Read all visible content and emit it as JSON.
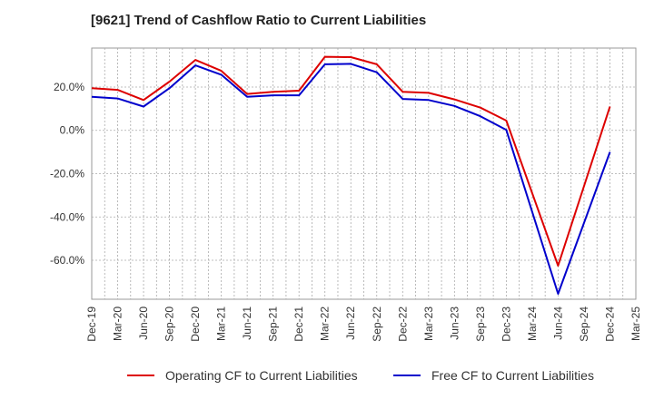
{
  "chart_data": {
    "type": "line",
    "title": "[9621]  Trend of Cashflow Ratio to Current Liabilities",
    "xlabel": "",
    "ylabel": "",
    "x_tick_labels": [
      "Dec-19",
      "Mar-20",
      "Jun-20",
      "Sep-20",
      "Dec-20",
      "Mar-21",
      "Jun-21",
      "Sep-21",
      "Dec-21",
      "Mar-22",
      "Jun-22",
      "Sep-22",
      "Dec-22",
      "Mar-23",
      "Jun-23",
      "Sep-23",
      "Dec-23",
      "Mar-24",
      "Jun-24",
      "Sep-24",
      "Dec-24",
      "Mar-25"
    ],
    "y_tick_values": [
      20,
      0,
      -20,
      -40,
      -60
    ],
    "y_tick_labels": [
      "20.0%",
      "0.0%",
      "-20.0%",
      "-40.0%",
      "-60.0%"
    ],
    "ylim": [
      -78,
      38
    ],
    "grid": true,
    "legend_position": "bottom",
    "series": [
      {
        "name": "Operating CF to Current Liabilities",
        "color": "#dd0000",
        "x": [
          "Dec-19",
          "Mar-20",
          "Jun-20",
          "Sep-20",
          "Dec-20",
          "Mar-21",
          "Jun-21",
          "Sep-21",
          "Dec-21",
          "Mar-22",
          "Jun-22",
          "Sep-22",
          "Dec-22",
          "Mar-23",
          "Jun-23",
          "Sep-23",
          "Dec-23",
          "Jun-24",
          "Dec-24"
        ],
        "values": [
          19.5,
          18.7,
          14,
          22.5,
          32.5,
          27.5,
          16.8,
          17.8,
          18.3,
          34,
          33.8,
          30.5,
          17.8,
          17.3,
          14.3,
          10.5,
          4.5,
          -62.5,
          11
        ]
      },
      {
        "name": "Free CF to Current Liabilities",
        "color": "#0000cc",
        "x": [
          "Dec-19",
          "Mar-20",
          "Jun-20",
          "Sep-20",
          "Dec-20",
          "Mar-21",
          "Jun-21",
          "Sep-21",
          "Dec-21",
          "Mar-22",
          "Jun-22",
          "Sep-22",
          "Dec-22",
          "Mar-23",
          "Jun-23",
          "Sep-23",
          "Dec-23",
          "Jun-24",
          "Dec-24"
        ],
        "values": [
          15.5,
          14.7,
          11,
          19.5,
          30,
          25.7,
          15.5,
          16.2,
          16.2,
          30.5,
          30.7,
          26.8,
          14.5,
          14,
          11.3,
          6.5,
          0.2,
          -75.5,
          -10
        ]
      }
    ]
  }
}
